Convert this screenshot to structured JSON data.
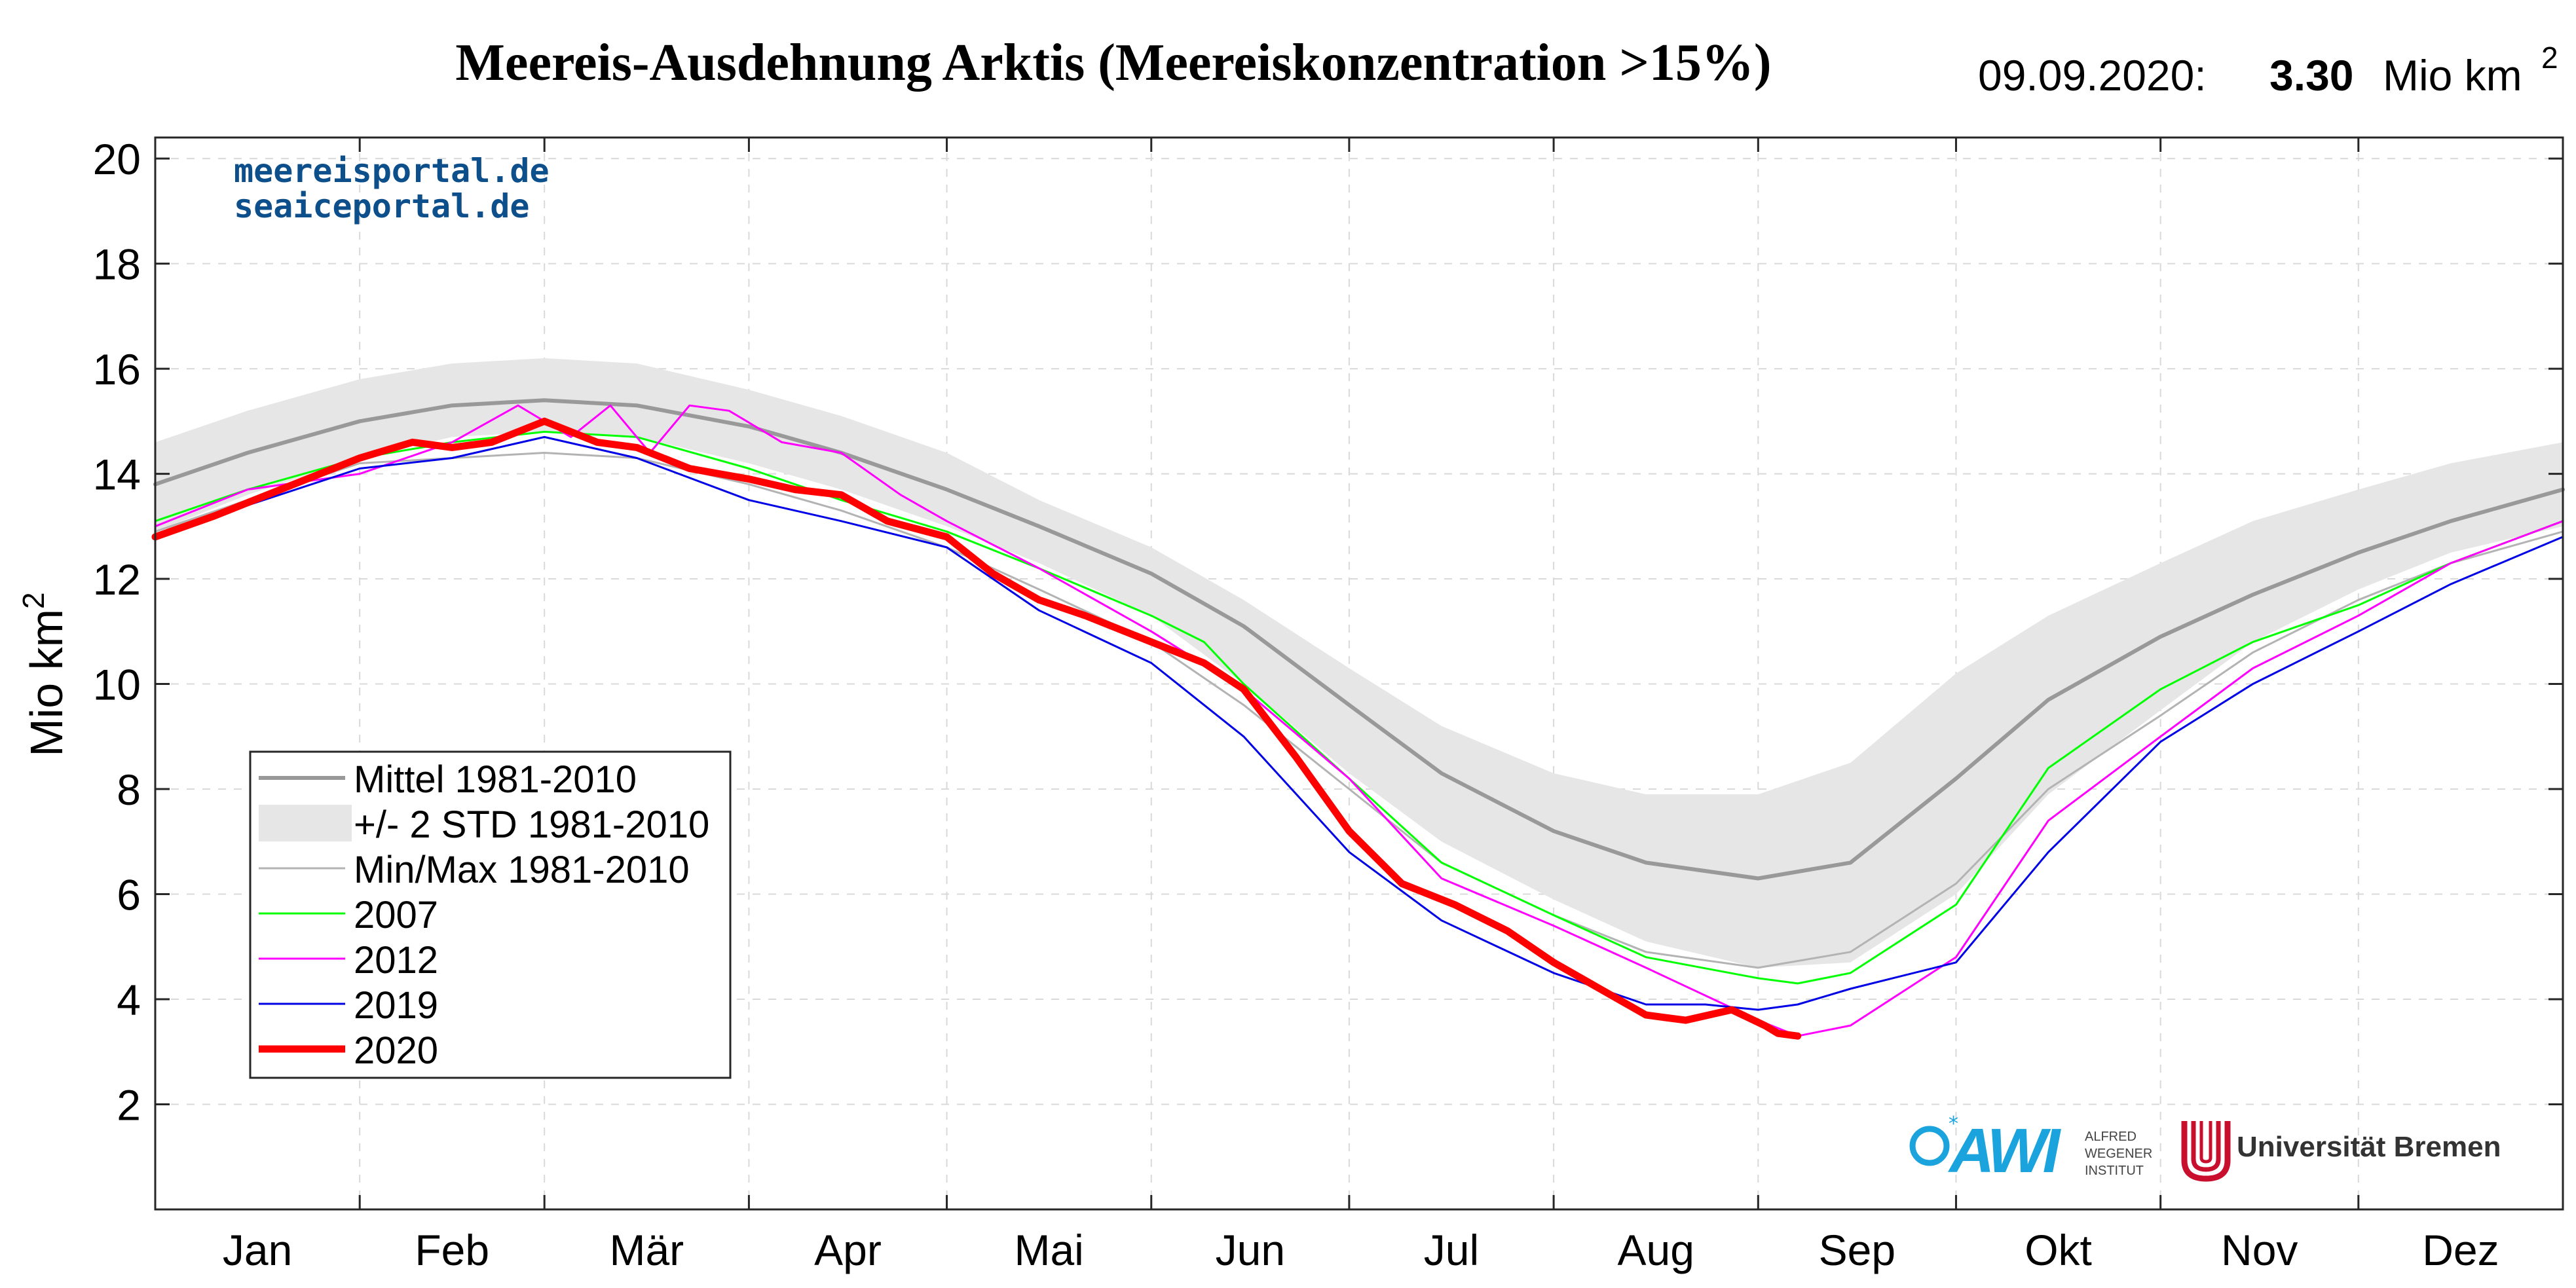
{
  "header": {
    "title": "Meereis-Ausdehnung Arktis (Meereiskonzentration >15%)",
    "date": "09.09.2020:",
    "value": "3.30",
    "unit": "Mio km",
    "unit_sup": "2"
  },
  "watermark": {
    "line1": "meereisportal.de",
    "line2": "seaiceportal.de"
  },
  "logos": {
    "awi": "AWI",
    "awi_sub": [
      "ALFRED",
      "WEGENER",
      "INSTITUT"
    ],
    "bremen": "Universität Bremen"
  },
  "chart_data": {
    "type": "line",
    "title": "Meereis-Ausdehnung Arktis (Meereiskonzentration >15%)",
    "ylabel": "Mio km",
    "ylabel_sup": "2",
    "ylim": [
      0,
      20.4
    ],
    "xlim": [
      1,
      366
    ],
    "yticks": [
      2,
      4,
      6,
      8,
      10,
      12,
      14,
      16,
      18,
      20
    ],
    "month_labels": [
      "Jan",
      "Feb",
      "Mär",
      "Apr",
      "Mai",
      "Jun",
      "Jul",
      "Aug",
      "Sep",
      "Okt",
      "Nov",
      "Dez"
    ],
    "grid": true,
    "legend_position": "lower-left",
    "legend": [
      {
        "label": "Mittel 1981-2010",
        "kind": "line",
        "color": "#999999"
      },
      {
        "label": "+/- 2 STD 1981-2010",
        "kind": "band",
        "color": "#e6e6e6"
      },
      {
        "label": "Min/Max 1981-2010",
        "kind": "line",
        "color": "#b3b3b3"
      },
      {
        "label": "2007",
        "kind": "line",
        "color": "#00ff00"
      },
      {
        "label": "2012",
        "kind": "line",
        "color": "#ff00ff"
      },
      {
        "label": "2019",
        "kind": "line",
        "color": "#0000e6"
      },
      {
        "label": "2020",
        "kind": "line",
        "color": "#ff0000"
      }
    ],
    "band": {
      "name": "+/- 2 STD 1981-2010",
      "x": [
        1,
        15,
        32,
        46,
        60,
        74,
        91,
        105,
        121,
        135,
        152,
        166,
        182,
        196,
        213,
        227,
        244,
        258,
        274,
        288,
        305,
        319,
        335,
        349,
        366
      ],
      "upper": [
        14.6,
        15.2,
        15.8,
        16.1,
        16.2,
        16.1,
        15.6,
        15.1,
        14.4,
        13.5,
        12.6,
        11.6,
        10.3,
        9.2,
        8.3,
        7.9,
        7.9,
        8.5,
        10.2,
        11.3,
        12.3,
        13.1,
        13.7,
        14.2,
        14.6
      ],
      "lower": [
        12.9,
        13.6,
        14.3,
        14.7,
        14.8,
        14.7,
        14.2,
        13.7,
        13.0,
        12.3,
        11.3,
        10.0,
        8.3,
        7.0,
        5.9,
        5.1,
        4.6,
        4.7,
        6.0,
        7.9,
        9.5,
        10.8,
        11.8,
        12.5,
        13.0
      ]
    },
    "series": [
      {
        "name": "Mittel 1981-2010",
        "color": "#999999",
        "width": 6,
        "x": [
          1,
          15,
          32,
          46,
          60,
          74,
          91,
          105,
          121,
          135,
          152,
          166,
          182,
          196,
          213,
          227,
          244,
          258,
          274,
          288,
          305,
          319,
          335,
          349,
          366
        ],
        "y": [
          13.8,
          14.4,
          15.0,
          15.3,
          15.4,
          15.3,
          14.9,
          14.4,
          13.7,
          13.0,
          12.1,
          11.1,
          9.6,
          8.3,
          7.2,
          6.6,
          6.3,
          6.6,
          8.2,
          9.7,
          10.9,
          11.7,
          12.5,
          13.1,
          13.7
        ]
      },
      {
        "name": "Min/Max 1981-2010",
        "color": "#b3b3b3",
        "width": 3,
        "x": [
          1,
          15,
          32,
          46,
          60,
          74,
          91,
          105,
          121,
          135,
          152,
          166,
          182,
          196,
          213,
          227,
          244,
          258,
          274,
          288,
          305,
          319,
          335,
          349,
          366
        ],
        "y": [
          12.9,
          13.5,
          14.2,
          14.3,
          14.4,
          14.3,
          13.8,
          13.3,
          12.6,
          11.8,
          10.8,
          9.6,
          8.0,
          6.6,
          5.6,
          4.9,
          4.6,
          4.9,
          6.2,
          8.0,
          9.4,
          10.6,
          11.6,
          12.3,
          12.9
        ]
      },
      {
        "name": "2007",
        "color": "#00ff00",
        "width": 3,
        "x": [
          1,
          15,
          32,
          46,
          60,
          74,
          91,
          105,
          121,
          135,
          152,
          160,
          166,
          182,
          196,
          213,
          227,
          244,
          250,
          258,
          274,
          288,
          305,
          319,
          335,
          349,
          366
        ],
        "y": [
          13.1,
          13.7,
          14.3,
          14.6,
          14.8,
          14.7,
          14.1,
          13.5,
          12.9,
          12.2,
          11.3,
          10.8,
          10.0,
          8.2,
          6.6,
          5.6,
          4.8,
          4.4,
          4.3,
          4.5,
          5.8,
          8.4,
          9.9,
          10.8,
          11.5,
          12.3,
          13.1
        ]
      },
      {
        "name": "2012",
        "color": "#ff00ff",
        "width": 3,
        "x": [
          1,
          15,
          32,
          46,
          56,
          64,
          70,
          76,
          82,
          88,
          96,
          105,
          114,
          121,
          135,
          152,
          166,
          182,
          196,
          213,
          227,
          244,
          250,
          258,
          274,
          288,
          305,
          319,
          335,
          349,
          366
        ],
        "y": [
          13.0,
          13.7,
          14.0,
          14.6,
          15.3,
          14.7,
          15.3,
          14.4,
          15.3,
          15.2,
          14.6,
          14.4,
          13.6,
          13.1,
          12.2,
          11.0,
          9.9,
          8.2,
          6.3,
          5.4,
          4.6,
          3.6,
          3.3,
          3.5,
          4.8,
          7.4,
          9.0,
          10.3,
          11.3,
          12.3,
          13.1
        ]
      },
      {
        "name": "2019",
        "color": "#0000e6",
        "width": 3,
        "x": [
          1,
          15,
          32,
          46,
          60,
          74,
          91,
          105,
          121,
          135,
          152,
          166,
          182,
          196,
          213,
          227,
          236,
          244,
          250,
          258,
          274,
          288,
          305,
          319,
          335,
          349,
          366
        ],
        "y": [
          12.8,
          13.4,
          14.1,
          14.3,
          14.7,
          14.3,
          13.5,
          13.1,
          12.6,
          11.4,
          10.4,
          9.0,
          6.8,
          5.5,
          4.5,
          3.9,
          3.9,
          3.8,
          3.9,
          4.2,
          4.7,
          6.8,
          8.9,
          10.0,
          11.0,
          11.9,
          12.8
        ]
      },
      {
        "name": "2020",
        "color": "#ff0000",
        "width": 11,
        "x": [
          1,
          10,
          20,
          32,
          40,
          46,
          52,
          60,
          68,
          74,
          82,
          91,
          98,
          105,
          112,
          121,
          128,
          135,
          142,
          152,
          160,
          166,
          174,
          182,
          190,
          198,
          206,
          213,
          220,
          227,
          233,
          240,
          245,
          247,
          250
        ],
        "y": [
          12.8,
          13.2,
          13.7,
          14.3,
          14.6,
          14.5,
          14.6,
          15.0,
          14.6,
          14.5,
          14.1,
          13.9,
          13.7,
          13.6,
          13.1,
          12.8,
          12.1,
          11.6,
          11.3,
          10.8,
          10.4,
          9.9,
          8.6,
          7.2,
          6.2,
          5.8,
          5.3,
          4.7,
          4.2,
          3.7,
          3.6,
          3.8,
          3.5,
          3.35,
          3.3
        ]
      }
    ]
  }
}
